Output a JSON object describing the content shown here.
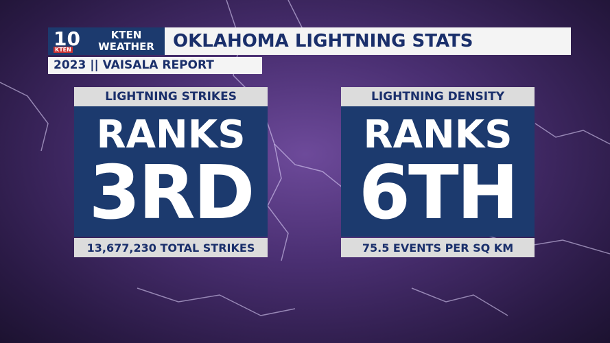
{
  "header": {
    "logo": {
      "number": "10",
      "station": "KTEN",
      "line1": "KTEN",
      "line2": "WEATHER"
    },
    "title": "OKLAHOMA LIGHTNING STATS",
    "subtitle": "2023 || VAISALA REPORT"
  },
  "panels": [
    {
      "label": "LIGHTNING STRIKES",
      "prefix": "RANKS",
      "rank": "3RD",
      "detail": "13,677,230 TOTAL STRIKES"
    },
    {
      "label": "LIGHTNING DENSITY",
      "prefix": "RANKS",
      "rank": "6TH",
      "detail": "75.5 EVENTS PER SQ KM"
    }
  ]
}
